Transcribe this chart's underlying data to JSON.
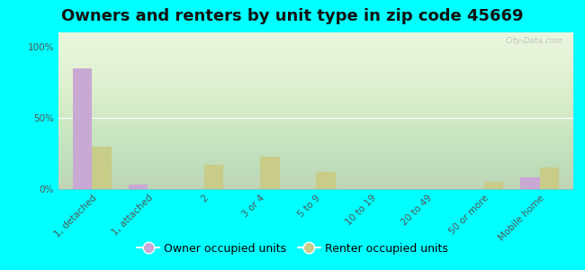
{
  "title": "Owners and renters by unit type in zip code 45669",
  "categories": [
    "1, detached",
    "1, attached",
    "2",
    "3 or 4",
    "5 to 9",
    "10 to 19",
    "20 to 49",
    "50 or more",
    "Mobile home"
  ],
  "owner_values": [
    85,
    3,
    0,
    0,
    0,
    0,
    0,
    0,
    8
  ],
  "renter_values": [
    30,
    0,
    17,
    23,
    12,
    0,
    0,
    5,
    15
  ],
  "owner_color": "#c9a8d4",
  "renter_color": "#c8cc88",
  "bg_color": "#00ffff",
  "plot_bg_color": "#e8f4d8",
  "ylabel_ticks": [
    "0%",
    "50%",
    "100%"
  ],
  "ytick_values": [
    0,
    50,
    100
  ],
  "ylim": [
    0,
    110
  ],
  "bar_width": 0.35,
  "title_fontsize": 13,
  "tick_fontsize": 7.5,
  "legend_fontsize": 9,
  "watermark": "City-Data.com"
}
